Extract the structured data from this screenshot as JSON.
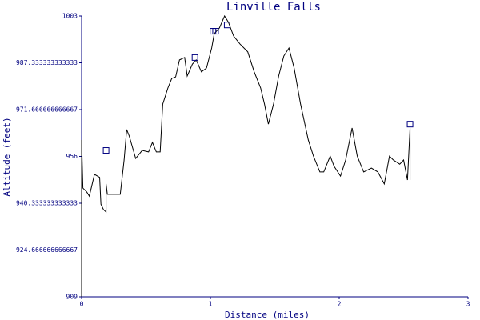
{
  "chart_data": {
    "type": "line",
    "title": "Linville Falls",
    "x_label": "Distance (miles)",
    "y_label": "Altitude (feet)",
    "xlim": [
      0,
      3
    ],
    "xticks": [
      0,
      1,
      2,
      3
    ],
    "ylim": [
      909,
      1003
    ],
    "yticks": [
      909,
      {
        "value": 924.666666666667,
        "label": "924.666666666667"
      },
      {
        "value": 940.333333333333,
        "label": "940.333333333333"
      },
      956,
      {
        "value": 971.666666666667,
        "label": "971.666666666667"
      },
      {
        "value": 987.333333333333,
        "label": "987.333333333333"
      },
      1003
    ],
    "axis_color": "#000080",
    "x": [
      0,
      0,
      0.01,
      0.04,
      0.06,
      0.1,
      0.14,
      0.15,
      0.17,
      0.19,
      0.19,
      0.2,
      0.3,
      0.33,
      0.35,
      0.37,
      0.42,
      0.47,
      0.52,
      0.55,
      0.58,
      0.61,
      0.63,
      0.67,
      0.7,
      0.73,
      0.76,
      0.8,
      0.82,
      0.86,
      0.89,
      0.93,
      0.97,
      1.01,
      1.03,
      1.07,
      1.11,
      1.14,
      1.18,
      1.23,
      1.29,
      1.34,
      1.39,
      1.42,
      1.45,
      1.49,
      1.53,
      1.57,
      1.61,
      1.65,
      1.7,
      1.76,
      1.8,
      1.85,
      1.88,
      1.93,
      1.96,
      2.01,
      2.05,
      2.1,
      2.14,
      2.19,
      2.25,
      2.3,
      2.35,
      2.39,
      2.42,
      2.47,
      2.5,
      2.53,
      2.55,
      2.55
    ],
    "series": [
      {
        "color": "#000000",
        "values": [
          909,
          961.5,
          945.4,
          944.1,
          942.7,
          950,
          949,
          940,
          938.2,
          937.4,
          946.8,
          943.3,
          943.3,
          954.8,
          965,
          962.8,
          955.3,
          958,
          957.5,
          960.7,
          957.5,
          957.5,
          973.5,
          978.9,
          982.1,
          982.6,
          988.3,
          989.1,
          982.9,
          986.9,
          988.3,
          984.3,
          985.6,
          992.3,
          997.1,
          999,
          1003,
          1000.9,
          996.3,
          993.6,
          991,
          984.3,
          978.9,
          973.5,
          966.8,
          973.5,
          982.9,
          989.6,
          992.3,
          985.6,
          973.5,
          961.5,
          956.1,
          950.8,
          950.8,
          956.1,
          952.7,
          949.4,
          954.8,
          965.5,
          956.1,
          950.8,
          952.1,
          950.8,
          946.8,
          956.1,
          954.8,
          953.4,
          954.8,
          948.1,
          965.5,
          948.1
        ]
      }
    ],
    "markers": {
      "color": "#000080",
      "x": [
        0.19,
        0.88,
        1.02,
        1.04,
        1.13,
        2.55
      ],
      "values": [
        958,
        989.1,
        997.9,
        997.9,
        1000,
        966.8
      ]
    }
  }
}
